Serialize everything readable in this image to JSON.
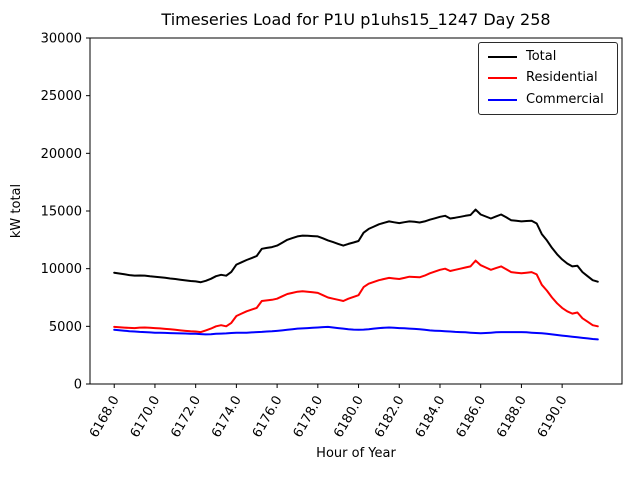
{
  "figure": {
    "background": "#ffffff",
    "axes_edge_color": "#000000"
  },
  "chart_data": {
    "type": "line",
    "title": "Timeseries Load for P1U p1uhs15_1247  Day 258",
    "xlabel": "Hour of Year",
    "ylabel": "kW total",
    "grid": false,
    "legend_position": "upper right",
    "xlim": [
      6166.81,
      6192.94
    ],
    "ylim": [
      0,
      30000
    ],
    "xticks": [
      6168,
      6170,
      6172,
      6174,
      6176,
      6178,
      6180,
      6182,
      6184,
      6186,
      6188,
      6190
    ],
    "xtick_labels": [
      "6168.0",
      "6170.0",
      "6172.0",
      "6174.0",
      "6176.0",
      "6178.0",
      "6180.0",
      "6182.0",
      "6184.0",
      "6186.0",
      "6188.0",
      "6190.0"
    ],
    "yticks": [
      0,
      5000,
      10000,
      15000,
      20000,
      25000,
      30000
    ],
    "ytick_labels": [
      "0",
      "5000",
      "10000",
      "15000",
      "20000",
      "25000",
      "30000"
    ],
    "x_start": 6168.0,
    "x_step": 0.25,
    "n_points": 96,
    "series": [
      {
        "name": "Total",
        "color": "#000000",
        "values": [
          9650,
          9580,
          9510,
          9440,
          9400,
          9410,
          9400,
          9340,
          9300,
          9260,
          9210,
          9150,
          9100,
          9040,
          8980,
          8930,
          8900,
          8830,
          8950,
          9120,
          9350,
          9470,
          9390,
          9720,
          10350,
          10550,
          10750,
          10920,
          11100,
          11720,
          11800,
          11870,
          12000,
          12250,
          12500,
          12650,
          12800,
          12870,
          12850,
          12820,
          12800,
          12630,
          12450,
          12300,
          12150,
          12000,
          12150,
          12270,
          12400,
          13120,
          13450,
          13650,
          13850,
          13980,
          14100,
          14020,
          13950,
          14030,
          14100,
          14060,
          14000,
          14100,
          14250,
          14370,
          14500,
          14580,
          14350,
          14420,
          14500,
          14580,
          14650,
          15120,
          14700,
          14520,
          14350,
          14530,
          14700,
          14450,
          14200,
          14150,
          14100,
          14130,
          14150,
          13920,
          13000,
          12450,
          11800,
          11250,
          10800,
          10450,
          10200,
          10250,
          9700,
          9350,
          9000,
          8870
        ]
      },
      {
        "name": "Residential",
        "color": "#ff0000",
        "values": [
          4950,
          4920,
          4890,
          4860,
          4850,
          4890,
          4900,
          4870,
          4850,
          4820,
          4780,
          4740,
          4700,
          4650,
          4600,
          4570,
          4550,
          4500,
          4650,
          4800,
          5000,
          5100,
          5000,
          5300,
          5900,
          6100,
          6300,
          6450,
          6600,
          7200,
          7250,
          7300,
          7400,
          7600,
          7800,
          7900,
          8000,
          8050,
          8000,
          7950,
          7900,
          7700,
          7500,
          7400,
          7300,
          7200,
          7400,
          7550,
          7700,
          8400,
          8700,
          8850,
          9000,
          9100,
          9200,
          9150,
          9100,
          9200,
          9300,
          9280,
          9250,
          9400,
          9600,
          9750,
          9900,
          10000,
          9800,
          9900,
          10000,
          10100,
          10200,
          10700,
          10300,
          10100,
          9900,
          10050,
          10200,
          9950,
          9700,
          9650,
          9600,
          9650,
          9700,
          9500,
          8600,
          8100,
          7500,
          7000,
          6600,
          6300,
          6100,
          6200,
          5700,
          5400,
          5100,
          5000
        ]
      },
      {
        "name": "Commercial",
        "color": "#0000ff",
        "values": [
          4700,
          4660,
          4620,
          4580,
          4550,
          4520,
          4500,
          4470,
          4450,
          4440,
          4430,
          4410,
          4400,
          4390,
          4380,
          4360,
          4350,
          4330,
          4300,
          4320,
          4350,
          4370,
          4390,
          4420,
          4450,
          4450,
          4450,
          4470,
          4500,
          4520,
          4550,
          4570,
          4600,
          4650,
          4700,
          4750,
          4800,
          4820,
          4850,
          4870,
          4900,
          4930,
          4950,
          4900,
          4850,
          4800,
          4750,
          4720,
          4700,
          4720,
          4750,
          4800,
          4850,
          4880,
          4900,
          4870,
          4850,
          4830,
          4800,
          4780,
          4750,
          4700,
          4650,
          4620,
          4600,
          4580,
          4550,
          4520,
          4500,
          4480,
          4450,
          4420,
          4400,
          4420,
          4450,
          4480,
          4500,
          4500,
          4500,
          4500,
          4500,
          4480,
          4450,
          4420,
          4400,
          4350,
          4300,
          4250,
          4200,
          4150,
          4100,
          4050,
          4000,
          3950,
          3900,
          3870
        ]
      }
    ]
  }
}
